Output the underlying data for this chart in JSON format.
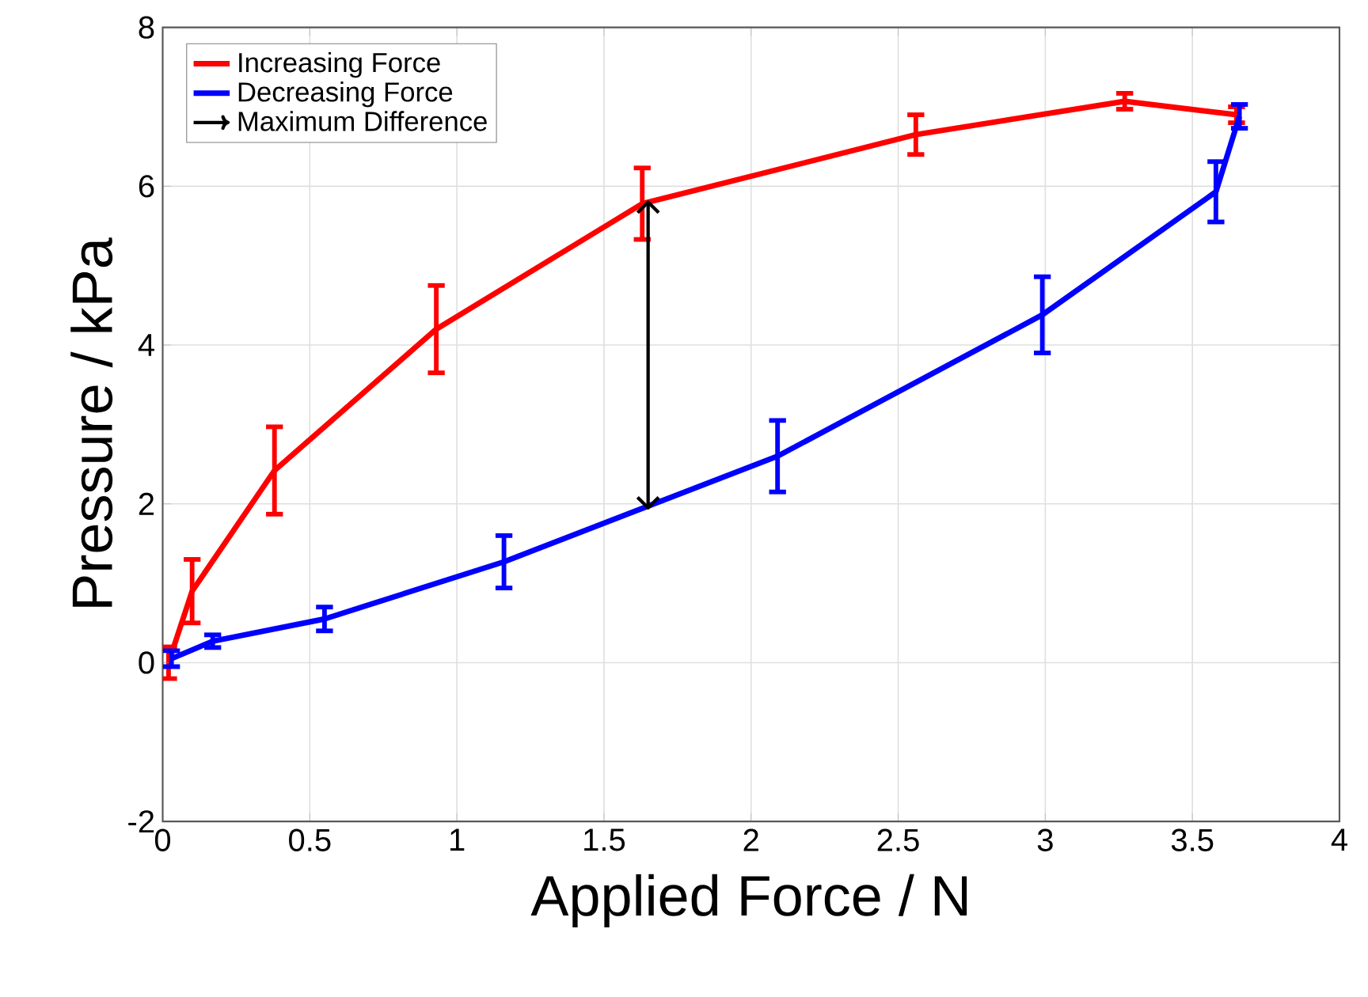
{
  "chart_data": {
    "type": "line",
    "xlabel": "Applied Force / N",
    "ylabel": "Pressure / kPa",
    "xlim": [
      0,
      4
    ],
    "ylim": [
      -2,
      8
    ],
    "xticks": [
      0,
      0.5,
      1,
      1.5,
      2,
      2.5,
      3,
      3.5,
      4
    ],
    "yticks": [
      -2,
      0,
      2,
      4,
      6,
      8
    ],
    "grid": true,
    "legend": "top left",
    "marker": "none",
    "line_style": "solid",
    "series": [
      {
        "name": "Increasing Force",
        "color": "#ff0000",
        "x": [
          0.02,
          0.1,
          0.38,
          0.93,
          1.63,
          2.56,
          3.27,
          3.65
        ],
        "values": [
          0.0,
          0.9,
          2.42,
          4.2,
          5.78,
          6.65,
          7.07,
          6.9
        ],
        "errors": [
          0.2,
          0.4,
          0.55,
          0.55,
          0.45,
          0.25,
          0.1,
          0.1
        ]
      },
      {
        "name": "Decreasing Force",
        "color": "#0000ff",
        "x": [
          0.03,
          0.17,
          0.55,
          1.16,
          2.09,
          2.99,
          3.58,
          3.66
        ],
        "values": [
          0.05,
          0.27,
          0.55,
          1.27,
          2.6,
          4.38,
          5.93,
          6.88
        ],
        "errors": [
          0.1,
          0.08,
          0.15,
          0.33,
          0.45,
          0.48,
          0.38,
          0.15
        ]
      },
      {
        "name": "Maximum Difference",
        "color": "#000000",
        "x": [
          1.65,
          1.65
        ],
        "values": [
          5.8,
          1.95
        ]
      }
    ]
  }
}
